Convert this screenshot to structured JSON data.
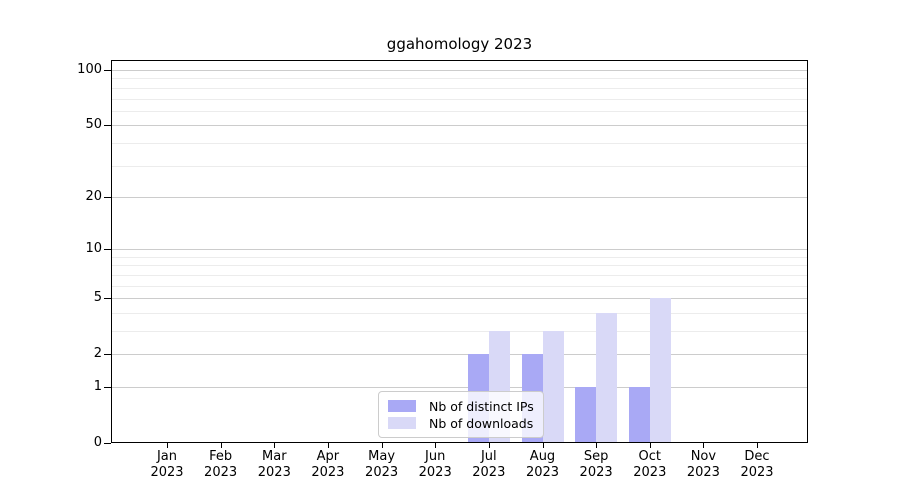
{
  "title": "ggahomology 2023",
  "legend": {
    "items": [
      {
        "label": "Nb of distinct IPs"
      },
      {
        "label": "Nb of downloads"
      }
    ]
  },
  "chart_data": {
    "type": "bar",
    "title": "ggahomology 2023",
    "categories": [
      "Jan",
      "Feb",
      "Mar",
      "Apr",
      "May",
      "Jun",
      "Jul",
      "Aug",
      "Sep",
      "Oct",
      "Nov",
      "Dec"
    ],
    "year": "2023",
    "series": [
      {
        "name": "Nb of distinct IPs",
        "color": "#a9a9f5",
        "values": [
          0,
          0,
          0,
          0,
          0,
          0,
          2,
          2,
          1,
          1,
          0,
          0
        ]
      },
      {
        "name": "Nb of downloads",
        "color": "#d9d9f7",
        "values": [
          0,
          0,
          0,
          0,
          0,
          0,
          3,
          3,
          4,
          5,
          0,
          0
        ]
      }
    ],
    "y_axis": {
      "scale": "log1p",
      "ticks": [
        0,
        1,
        2,
        5,
        10,
        20,
        50,
        100
      ],
      "minor_ticks": [
        3,
        4,
        6,
        7,
        8,
        9,
        30,
        40,
        60,
        70,
        80,
        90
      ],
      "range": [
        0,
        100
      ]
    },
    "x_axis": {
      "tick_label_line2": "2023"
    },
    "grid": true,
    "legend_position": "inside-bottom-center",
    "colors": {
      "distinct_ips": "#a9a9f5",
      "downloads": "#d9d9f7",
      "grid_major": "#cccccc",
      "grid_minor": "#ececec"
    }
  }
}
